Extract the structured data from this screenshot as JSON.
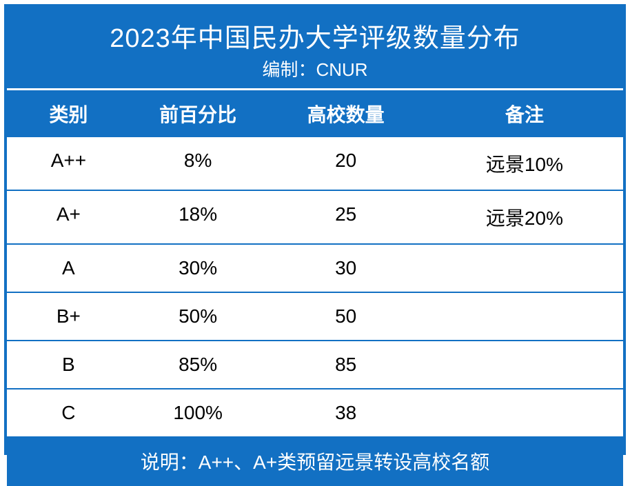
{
  "colors": {
    "primary": "#1270c3",
    "text": "#000000",
    "header_text": "#ffffff",
    "background": "#ffffff"
  },
  "title": {
    "main": "2023年中国民办大学评级数量分布",
    "sub": "编制：CNUR"
  },
  "columns": [
    "类别",
    "前百分比",
    "高校数量",
    "备注"
  ],
  "rows": [
    {
      "cat": "A++",
      "pct": "8%",
      "count": "20",
      "note": "远景10%"
    },
    {
      "cat": "A+",
      "pct": "18%",
      "count": "25",
      "note": "远景20%"
    },
    {
      "cat": "A",
      "pct": "30%",
      "count": "30",
      "note": ""
    },
    {
      "cat": "B+",
      "pct": "50%",
      "count": "50",
      "note": ""
    },
    {
      "cat": "B",
      "pct": "85%",
      "count": "85",
      "note": ""
    },
    {
      "cat": "C",
      "pct": "100%",
      "count": "38",
      "note": ""
    }
  ],
  "footer": "说明：A++、A+类预留远景转设高校名额",
  "typography": {
    "title_fontsize": 38,
    "subtitle_fontsize": 26,
    "header_fontsize": 28,
    "cell_fontsize": 28,
    "footer_fontsize": 28
  },
  "layout": {
    "border_width": 4,
    "row_border_width": 2,
    "col_widths_pct": [
      20,
      22,
      26,
      32
    ]
  }
}
